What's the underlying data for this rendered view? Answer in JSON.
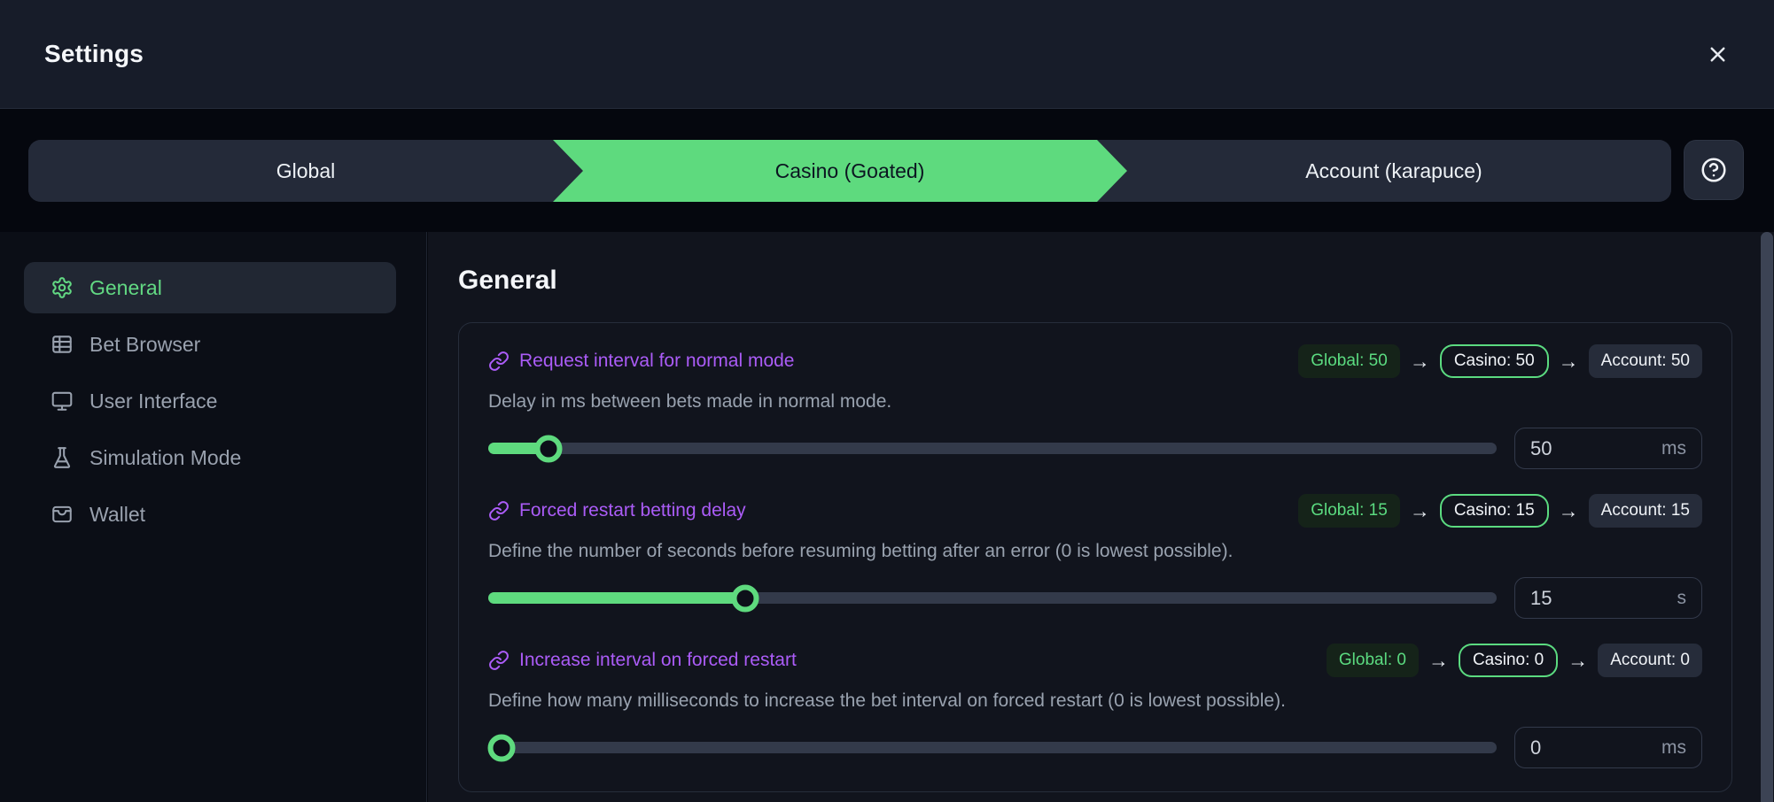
{
  "colors": {
    "accent_green": "#5eda7e",
    "accent_purple": "#ab5cf7",
    "header_bg": "#171c29",
    "strip_bg": "#05070e",
    "main_bg": "#11141d",
    "sidebar_bg": "#0b0e16"
  },
  "header": {
    "title": "Settings",
    "close_icon": "x-icon"
  },
  "tab_bar": {
    "help_icon": "circle-question-icon",
    "tabs": [
      {
        "label": "Global",
        "active": false
      },
      {
        "label": "Casino (Goated)",
        "active": true
      },
      {
        "label": "Account (karapuce)",
        "active": false
      }
    ]
  },
  "sidebar": {
    "items": [
      {
        "label": "General",
        "icon": "gear",
        "active": true
      },
      {
        "label": "Bet Browser",
        "icon": "table",
        "active": false
      },
      {
        "label": "User Interface",
        "icon": "monitor",
        "active": false
      },
      {
        "label": "Simulation Mode",
        "icon": "flask",
        "active": false
      },
      {
        "label": "Wallet",
        "icon": "wallet",
        "active": false
      }
    ]
  },
  "content": {
    "heading": "General",
    "badge_arrow": "→",
    "settings": [
      {
        "title": "Request interval for normal mode",
        "description": "Delay in ms between bets made in normal mode.",
        "badges": {
          "global": "Global: 50",
          "casino": "Casino: 50",
          "account": "Account: 50"
        },
        "value": "50",
        "unit": "ms",
        "slider_percent": 6
      },
      {
        "title": "Forced restart betting delay",
        "description": "Define the number of seconds before resuming betting after an error (0 is lowest possible).",
        "badges": {
          "global": "Global: 15",
          "casino": "Casino: 15",
          "account": "Account: 15"
        },
        "value": "15",
        "unit": "s",
        "slider_percent": 25.5
      },
      {
        "title": "Increase interval on forced restart",
        "description": "Define how many milliseconds to increase the bet interval on forced restart (0 is lowest possible).",
        "badges": {
          "global": "Global: 0",
          "casino": "Casino: 0",
          "account": "Account: 0"
        },
        "value": "0",
        "unit": "ms",
        "slider_percent": 1.3
      }
    ]
  }
}
